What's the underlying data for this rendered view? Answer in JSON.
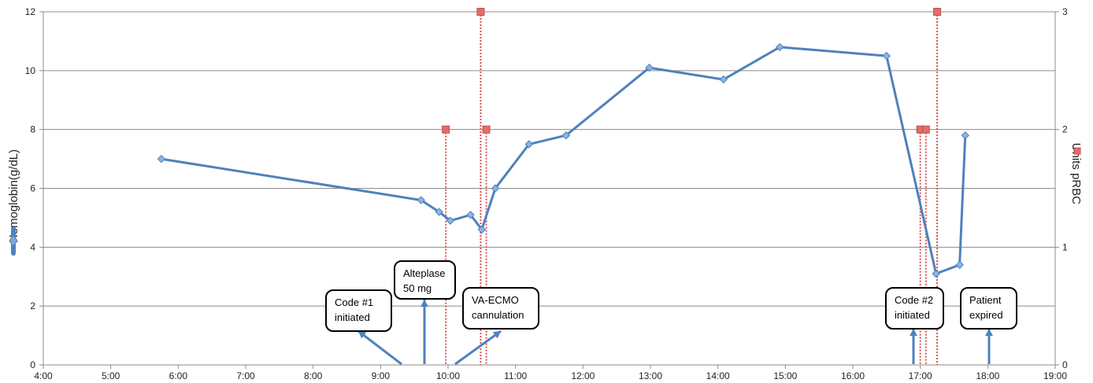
{
  "chart_data": {
    "type": "line",
    "xlabel": "",
    "ylabel": "Hemoglobin(g/dL)",
    "y2label": "Units pRBC",
    "xlim": [
      "4:00",
      "19:00"
    ],
    "x_ticks": [
      "4:00",
      "5:00",
      "6:00",
      "7:00",
      "8:00",
      "9:00",
      "10:00",
      "11:00",
      "12:00",
      "13:00",
      "14:00",
      "15:00",
      "16:00",
      "17:00",
      "18:00",
      "19:00"
    ],
    "ylim": [
      0,
      12
    ],
    "y_ticks": [
      "0",
      "2",
      "4",
      "6",
      "8",
      "10",
      "12"
    ],
    "y2lim": [
      0,
      3
    ],
    "y2_ticks": [
      "0",
      "1",
      "2",
      "3"
    ],
    "grid": "horizontal",
    "legend": "none",
    "colors": {
      "hemoglobin": "#4f81bd",
      "prbc": "#e46c6c"
    },
    "series": [
      {
        "name": "Hemoglobin(g/dL)",
        "axis": "left",
        "marker": "diamond",
        "x": [
          "5:45",
          "9:36",
          "9:52",
          "10:02",
          "10:20",
          "10:30",
          "10:42",
          "11:12",
          "11:45",
          "12:59",
          "14:05",
          "14:55",
          "16:30",
          "17:14",
          "17:35",
          "17:40"
        ],
        "y": [
          7.0,
          5.6,
          5.2,
          4.9,
          5.1,
          4.6,
          6.0,
          7.5,
          7.8,
          10.1,
          9.7,
          10.8,
          10.5,
          3.1,
          3.4,
          7.8
        ]
      },
      {
        "name": "Units pRBC",
        "axis": "right",
        "marker": "square",
        "x": [
          "9:58",
          "10:29",
          "10:34",
          "17:00",
          "17:05",
          "17:15"
        ],
        "y": [
          2,
          3,
          2,
          2,
          2,
          3
        ]
      }
    ],
    "annotations": [
      {
        "text": "Code #1\ninitiated",
        "x": "9:17"
      },
      {
        "text": "Alteplase\n50 mg",
        "x": "9:39"
      },
      {
        "text": "VA-ECMO\ncannulation",
        "x": "10:07"
      },
      {
        "text": "Code #2\ninitiated",
        "x": "16:54"
      },
      {
        "text": "Patient\nexpired",
        "x": "18:02"
      }
    ]
  }
}
